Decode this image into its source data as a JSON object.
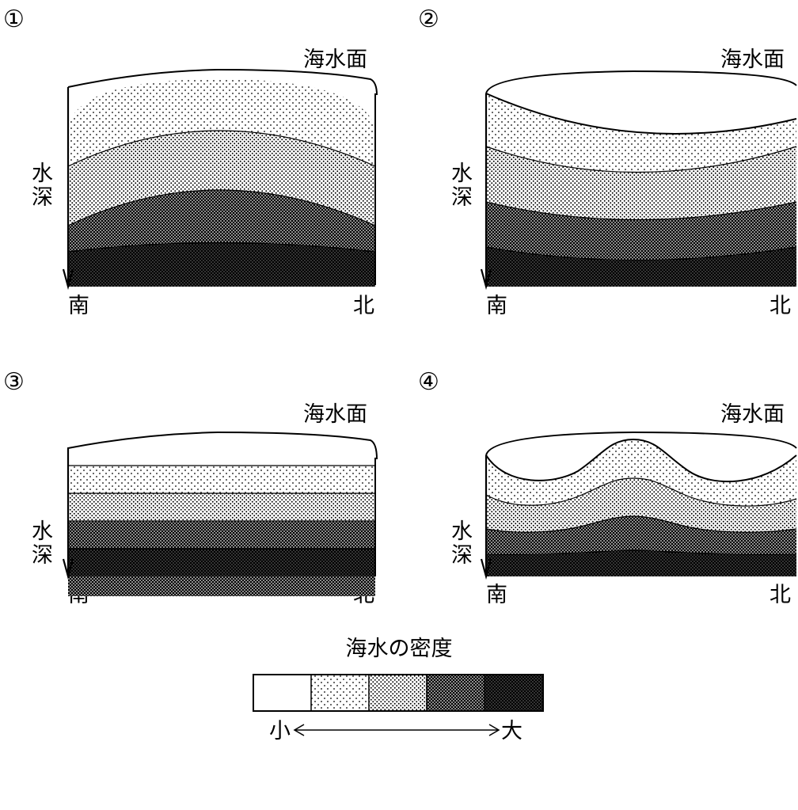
{
  "panels": [
    {
      "number": "①",
      "sea_surface_label": "海水面",
      "depth_label": "水深",
      "south_label": "南",
      "north_label": "北"
    },
    {
      "number": "②",
      "sea_surface_label": "海水面",
      "depth_label": "水深",
      "south_label": "南",
      "north_label": "北"
    },
    {
      "number": "③",
      "sea_surface_label": "海水面",
      "depth_label": "水深",
      "south_label": "南",
      "north_label": "北"
    },
    {
      "number": "④",
      "sea_surface_label": "海水面",
      "depth_label": "水深",
      "south_label": "南",
      "north_label": "北"
    }
  ],
  "legend": {
    "title": "海水の密度",
    "low_label": "小",
    "high_label": "大",
    "levels": 5
  }
}
